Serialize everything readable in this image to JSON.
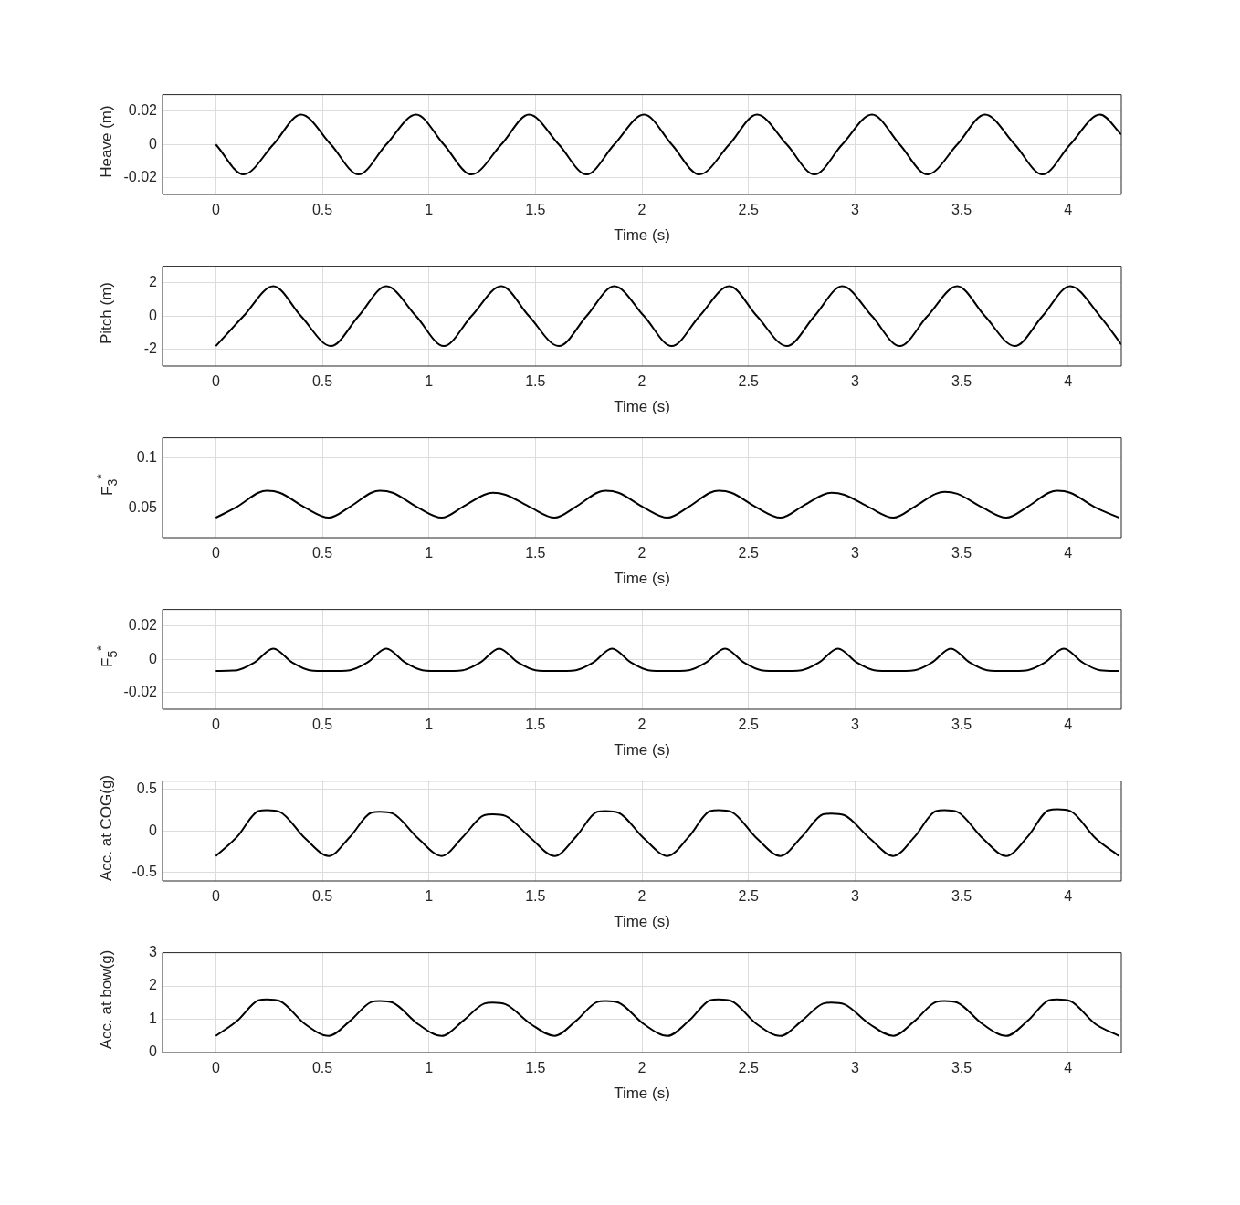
{
  "chart_data": [
    {
      "type": "line",
      "xlabel": "Time (s)",
      "ylabel": "Heave (m)",
      "color": "#000000",
      "grid": true,
      "xlim": [
        -0.25,
        4.25
      ],
      "xticks": [
        0,
        0.5,
        1,
        1.5,
        2,
        2.5,
        3,
        3.5,
        4
      ],
      "ylim": [
        -0.03,
        0.03
      ],
      "yticks": [
        -0.02,
        0,
        0.02
      ],
      "x": [
        0,
        0.13,
        0.27,
        0.4,
        0.54,
        0.67,
        0.8,
        0.94,
        1.07,
        1.2,
        1.34,
        1.47,
        1.61,
        1.74,
        1.87,
        2.01,
        2.14,
        2.27,
        2.41,
        2.54,
        2.68,
        2.81,
        2.94,
        3.08,
        3.21,
        3.34,
        3.48,
        3.61,
        3.75,
        3.88,
        4.01,
        4.15,
        4.25
      ],
      "values": [
        0,
        -0.018,
        0,
        0.018,
        0,
        -0.018,
        0,
        0.018,
        0,
        -0.018,
        0,
        0.018,
        0,
        -0.018,
        0,
        0.018,
        0,
        -0.018,
        0,
        0.018,
        0,
        -0.018,
        0,
        0.018,
        0,
        -0.018,
        0,
        0.018,
        0,
        -0.018,
        0,
        0.018,
        0.006
      ]
    },
    {
      "type": "line",
      "xlabel": "Time (s)",
      "ylabel": "Pitch (m)",
      "color": "#000000",
      "grid": true,
      "xlim": [
        -0.25,
        4.25
      ],
      "xticks": [
        0,
        0.5,
        1,
        1.5,
        2,
        2.5,
        3,
        3.5,
        4
      ],
      "ylim": [
        -3,
        3
      ],
      "yticks": [
        -2,
        0,
        2
      ],
      "x": [
        0,
        0.13,
        0.27,
        0.4,
        0.54,
        0.67,
        0.8,
        0.94,
        1.07,
        1.2,
        1.34,
        1.47,
        1.61,
        1.74,
        1.87,
        2.01,
        2.14,
        2.27,
        2.41,
        2.54,
        2.68,
        2.81,
        2.94,
        3.08,
        3.21,
        3.34,
        3.48,
        3.61,
        3.75,
        3.88,
        4.01,
        4.15,
        4.25
      ],
      "values": [
        -1.8,
        0,
        1.8,
        0,
        -1.8,
        0,
        1.8,
        0,
        -1.8,
        0,
        1.8,
        0,
        -1.8,
        0,
        1.8,
        0,
        -1.8,
        0,
        1.8,
        0,
        -1.8,
        0,
        1.8,
        0,
        -1.8,
        0,
        1.8,
        0,
        -1.8,
        0,
        1.8,
        0,
        -1.7
      ]
    },
    {
      "type": "line",
      "xlabel": "Time (s)",
      "ylabel": "F$_{3}$$^{*}$",
      "color": "#000000",
      "grid": true,
      "xlim": [
        -0.25,
        4.25
      ],
      "xticks": [
        0,
        0.5,
        1,
        1.5,
        2,
        2.5,
        3,
        3.5,
        4
      ],
      "ylim": [
        0.02,
        0.12
      ],
      "yticks": [
        0.05,
        0.1
      ],
      "x": [
        0,
        0.1,
        0.2,
        0.24,
        0.3,
        0.42,
        0.53,
        0.63,
        0.73,
        0.77,
        0.83,
        0.95,
        1.06,
        1.16,
        1.26,
        1.3,
        1.36,
        1.48,
        1.59,
        1.69,
        1.79,
        1.83,
        1.89,
        2.01,
        2.12,
        2.22,
        2.32,
        2.36,
        2.42,
        2.54,
        2.65,
        2.75,
        2.85,
        2.89,
        2.95,
        3.07,
        3.18,
        3.28,
        3.38,
        3.42,
        3.48,
        3.6,
        3.71,
        3.81,
        3.91,
        3.95,
        4.01,
        4.13,
        4.24
      ],
      "values": [
        0.04,
        0.051,
        0.065,
        0.067,
        0.065,
        0.05,
        0.04,
        0.051,
        0.065,
        0.067,
        0.065,
        0.05,
        0.04,
        0.051,
        0.063,
        0.065,
        0.063,
        0.05,
        0.04,
        0.051,
        0.065,
        0.067,
        0.065,
        0.05,
        0.04,
        0.051,
        0.065,
        0.067,
        0.065,
        0.05,
        0.04,
        0.051,
        0.063,
        0.065,
        0.063,
        0.05,
        0.04,
        0.051,
        0.064,
        0.066,
        0.064,
        0.05,
        0.04,
        0.051,
        0.065,
        0.067,
        0.065,
        0.05,
        0.04
      ]
    },
    {
      "type": "line",
      "xlabel": "Time (s)",
      "ylabel": "F$_{5}$$^{*}$",
      "color": "#000000",
      "grid": true,
      "xlim": [
        -0.25,
        4.25
      ],
      "xticks": [
        0,
        0.5,
        1,
        1.5,
        2,
        2.5,
        3,
        3.5,
        4
      ],
      "ylim": [
        -0.03,
        0.03
      ],
      "yticks": [
        -0.02,
        0,
        0.02
      ],
      "x": [
        0,
        0.1,
        0.18,
        0.27,
        0.36,
        0.44,
        0.53,
        0.63,
        0.71,
        0.8,
        0.89,
        0.97,
        1.06,
        1.16,
        1.24,
        1.33,
        1.42,
        1.5,
        1.59,
        1.69,
        1.77,
        1.86,
        1.95,
        2.03,
        2.12,
        2.22,
        2.3,
        2.39,
        2.48,
        2.56,
        2.65,
        2.75,
        2.83,
        2.92,
        3.01,
        3.09,
        3.18,
        3.28,
        3.36,
        3.45,
        3.54,
        3.62,
        3.71,
        3.81,
        3.89,
        3.98,
        4.07,
        4.15,
        4.24
      ],
      "values": [
        -0.007,
        -0.0065,
        -0.002,
        0.0065,
        -0.002,
        -0.0065,
        -0.007,
        -0.0065,
        -0.002,
        0.0065,
        -0.002,
        -0.0065,
        -0.007,
        -0.0065,
        -0.002,
        0.0065,
        -0.002,
        -0.0065,
        -0.007,
        -0.0065,
        -0.002,
        0.0065,
        -0.002,
        -0.0065,
        -0.007,
        -0.0065,
        -0.002,
        0.0065,
        -0.002,
        -0.0065,
        -0.007,
        -0.0065,
        -0.002,
        0.0065,
        -0.002,
        -0.0065,
        -0.007,
        -0.0065,
        -0.002,
        0.0065,
        -0.002,
        -0.0065,
        -0.007,
        -0.0065,
        -0.002,
        0.0065,
        -0.002,
        -0.0065,
        -0.007
      ]
    },
    {
      "type": "line",
      "xlabel": "Time (s)",
      "ylabel": "Acc. at COG(g)",
      "color": "#000000",
      "grid": true,
      "xlim": [
        -0.25,
        4.25
      ],
      "xticks": [
        0,
        0.5,
        1,
        1.5,
        2,
        2.5,
        3,
        3.5,
        4
      ],
      "ylim": [
        -0.6,
        0.6
      ],
      "yticks": [
        -0.5,
        0,
        0.5
      ],
      "x": [
        0,
        0.1,
        0.2,
        0.24,
        0.3,
        0.42,
        0.53,
        0.63,
        0.73,
        0.77,
        0.83,
        0.95,
        1.06,
        1.16,
        1.26,
        1.3,
        1.36,
        1.48,
        1.59,
        1.69,
        1.79,
        1.83,
        1.89,
        2.01,
        2.12,
        2.22,
        2.32,
        2.36,
        2.42,
        2.54,
        2.65,
        2.75,
        2.85,
        2.89,
        2.95,
        3.07,
        3.18,
        3.28,
        3.38,
        3.42,
        3.48,
        3.6,
        3.71,
        3.81,
        3.91,
        3.95,
        4.01,
        4.13,
        4.24
      ],
      "values": [
        -0.3,
        -0.07,
        0.24,
        0.25,
        0.23,
        -0.09,
        -0.3,
        -0.07,
        0.22,
        0.23,
        0.21,
        -0.09,
        -0.3,
        -0.07,
        0.19,
        0.2,
        0.18,
        -0.09,
        -0.3,
        -0.07,
        0.23,
        0.24,
        0.22,
        -0.09,
        -0.3,
        -0.07,
        0.24,
        0.25,
        0.23,
        -0.09,
        -0.3,
        -0.07,
        0.2,
        0.21,
        0.19,
        -0.09,
        -0.3,
        -0.07,
        0.24,
        0.25,
        0.23,
        -0.09,
        -0.3,
        -0.07,
        0.25,
        0.26,
        0.24,
        -0.09,
        -0.3
      ]
    },
    {
      "type": "line",
      "xlabel": "Time (s)",
      "ylabel": "Acc. at bow(g)",
      "color": "#000000",
      "grid": true,
      "xlim": [
        -0.25,
        4.25
      ],
      "xticks": [
        0,
        0.5,
        1,
        1.5,
        2,
        2.5,
        3,
        3.5,
        4
      ],
      "ylim": [
        0,
        3
      ],
      "yticks": [
        0,
        1,
        2,
        3
      ],
      "x": [
        0,
        0.1,
        0.2,
        0.24,
        0.3,
        0.42,
        0.53,
        0.63,
        0.73,
        0.77,
        0.83,
        0.95,
        1.06,
        1.16,
        1.26,
        1.3,
        1.36,
        1.48,
        1.59,
        1.69,
        1.79,
        1.83,
        1.89,
        2.01,
        2.12,
        2.22,
        2.32,
        2.36,
        2.42,
        2.54,
        2.65,
        2.75,
        2.85,
        2.89,
        2.95,
        3.07,
        3.18,
        3.28,
        3.38,
        3.42,
        3.48,
        3.6,
        3.71,
        3.81,
        3.91,
        3.95,
        4.01,
        4.13,
        4.24
      ],
      "values": [
        0.5,
        0.95,
        1.57,
        1.6,
        1.55,
        0.85,
        0.5,
        0.95,
        1.52,
        1.55,
        1.5,
        0.85,
        0.5,
        0.95,
        1.47,
        1.5,
        1.45,
        0.85,
        0.5,
        0.95,
        1.52,
        1.55,
        1.5,
        0.85,
        0.5,
        0.95,
        1.57,
        1.6,
        1.55,
        0.85,
        0.5,
        0.95,
        1.47,
        1.5,
        1.45,
        0.85,
        0.5,
        0.95,
        1.52,
        1.55,
        1.5,
        0.85,
        0.5,
        0.95,
        1.57,
        1.6,
        1.55,
        0.85,
        0.5
      ]
    }
  ]
}
